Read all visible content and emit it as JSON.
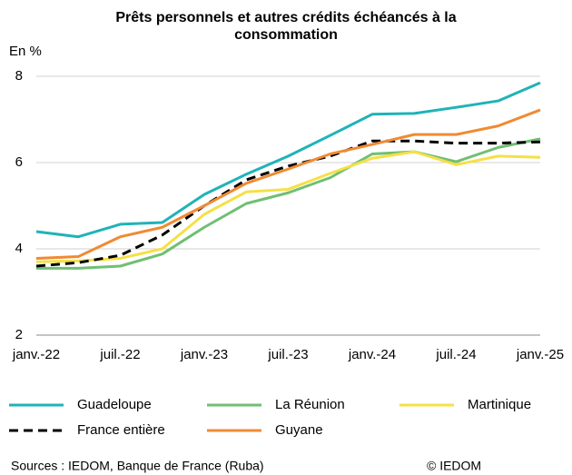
{
  "chart_data": {
    "type": "line",
    "title": "Prêts personnels et autres crédits échéancés à la consommation",
    "y_label": "En %",
    "categories": [
      "janv.-22",
      null,
      "juil.-22",
      null,
      "janv.-23",
      null,
      "juil.-23",
      null,
      "janv.-24",
      null,
      "juil.-24",
      null,
      "janv.-25"
    ],
    "series": [
      {
        "name": "Guadeloupe",
        "color": "#1fb3b8",
        "values": [
          4.4,
          4.28,
          4.57,
          4.61,
          5.26,
          5.73,
          6.15,
          6.63,
          7.12,
          7.14,
          7.28,
          7.43,
          7.85
        ]
      },
      {
        "name": "La Réunion",
        "color": "#70bf73",
        "values": [
          3.55,
          3.55,
          3.6,
          3.88,
          4.5,
          5.05,
          5.3,
          5.65,
          6.2,
          6.25,
          6.02,
          6.35,
          6.55
        ]
      },
      {
        "name": "Martinique",
        "color": "#f5e046",
        "values": [
          3.7,
          3.72,
          3.78,
          4.0,
          4.8,
          5.32,
          5.38,
          5.75,
          6.1,
          6.25,
          5.95,
          6.15,
          6.12
        ]
      },
      {
        "name": "France entière",
        "color": "#000000",
        "dashed": true,
        "values": [
          3.6,
          3.68,
          3.85,
          4.32,
          5.0,
          5.6,
          5.92,
          6.15,
          6.5,
          6.5,
          6.45,
          6.45,
          6.48
        ]
      },
      {
        "name": "Guyane",
        "color": "#f08a32",
        "values": [
          3.78,
          3.82,
          4.28,
          4.5,
          5.0,
          5.52,
          5.85,
          6.2,
          6.42,
          6.65,
          6.65,
          6.85,
          7.22
        ]
      }
    ],
    "ylim": [
      2,
      8
    ],
    "yticks": [
      2,
      4,
      6,
      8
    ],
    "grid": true,
    "source": "Sources : IEDOM, Banque de France (Ruba)",
    "copyright": "© IEDOM"
  }
}
